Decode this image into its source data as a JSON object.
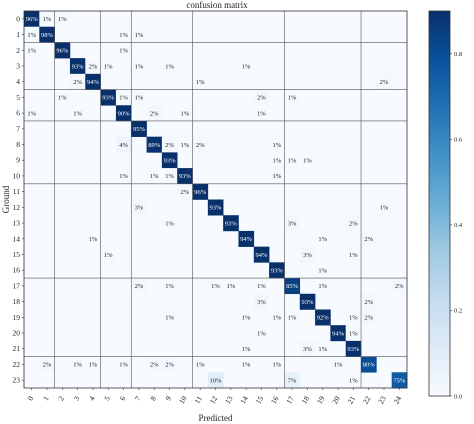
{
  "chart_data": {
    "type": "heatmap",
    "title": "confusion matrix",
    "xlabel": "Predicted",
    "ylabel": "Ground",
    "x_categories": [
      "0",
      "1",
      "2",
      "3",
      "4",
      "5",
      "6",
      "7",
      "8",
      "9",
      "10",
      "11",
      "12",
      "13",
      "14",
      "15",
      "16",
      "17",
      "18",
      "19",
      "20",
      "21",
      "22",
      "23",
      "24"
    ],
    "y_categories": [
      "0",
      "1",
      "2",
      "3",
      "4",
      "5",
      "6",
      "7",
      "8",
      "9",
      "10",
      "11",
      "12",
      "13",
      "14",
      "15",
      "16",
      "17",
      "18",
      "19",
      "20",
      "21",
      "22",
      "23"
    ],
    "colorbar": {
      "min": 0,
      "max": 0.9,
      "ticks": [
        0.0,
        0.2,
        0.4,
        0.6,
        0.8
      ],
      "tick_labels": [
        "0.0",
        "0.2",
        "0.4",
        "0.6",
        "0.8"
      ]
    },
    "colormap": "Blues",
    "group_boundaries_after_row": [
      1,
      4,
      6,
      10,
      16,
      21
    ],
    "cells": [
      {
        "row": 0,
        "col": 0,
        "value": 0.96,
        "label": "96%"
      },
      {
        "row": 0,
        "col": 1,
        "value": 0.01,
        "label": "1%"
      },
      {
        "row": 0,
        "col": 2,
        "value": 0.01,
        "label": "1%"
      },
      {
        "row": 1,
        "col": 0,
        "value": 0.01,
        "label": "1%"
      },
      {
        "row": 1,
        "col": 1,
        "value": 0.98,
        "label": "98%"
      },
      {
        "row": 1,
        "col": 6,
        "value": 0.01,
        "label": "1%"
      },
      {
        "row": 1,
        "col": 7,
        "value": 0.01,
        "label": "1%"
      },
      {
        "row": 2,
        "col": 0,
        "value": 0.01,
        "label": "1%"
      },
      {
        "row": 2,
        "col": 2,
        "value": 0.96,
        "label": "96%"
      },
      {
        "row": 2,
        "col": 6,
        "value": 0.01,
        "label": "1%"
      },
      {
        "row": 3,
        "col": 3,
        "value": 0.93,
        "label": "93%"
      },
      {
        "row": 3,
        "col": 4,
        "value": 0.02,
        "label": "2%"
      },
      {
        "row": 3,
        "col": 5,
        "value": 0.01,
        "label": "1%"
      },
      {
        "row": 3,
        "col": 7,
        "value": 0.01,
        "label": "1%"
      },
      {
        "row": 3,
        "col": 9,
        "value": 0.01,
        "label": "1%"
      },
      {
        "row": 3,
        "col": 14,
        "value": 0.01,
        "label": "1%"
      },
      {
        "row": 4,
        "col": 3,
        "value": 0.02,
        "label": "2%"
      },
      {
        "row": 4,
        "col": 4,
        "value": 0.94,
        "label": "94%"
      },
      {
        "row": 4,
        "col": 11,
        "value": 0.01,
        "label": "1%"
      },
      {
        "row": 4,
        "col": 23,
        "value": 0.02,
        "label": "2%"
      },
      {
        "row": 5,
        "col": 2,
        "value": 0.01,
        "label": "1%"
      },
      {
        "row": 5,
        "col": 5,
        "value": 0.93,
        "label": "93%"
      },
      {
        "row": 5,
        "col": 6,
        "value": 0.01,
        "label": "1%"
      },
      {
        "row": 5,
        "col": 7,
        "value": 0.01,
        "label": "1%"
      },
      {
        "row": 5,
        "col": 15,
        "value": 0.02,
        "label": "2%"
      },
      {
        "row": 5,
        "col": 17,
        "value": 0.01,
        "label": "1%"
      },
      {
        "row": 6,
        "col": 0,
        "value": 0.01,
        "label": "1%"
      },
      {
        "row": 6,
        "col": 3,
        "value": 0.01,
        "label": "1%"
      },
      {
        "row": 6,
        "col": 6,
        "value": 0.9,
        "label": "90%"
      },
      {
        "row": 6,
        "col": 8,
        "value": 0.02,
        "label": "2%"
      },
      {
        "row": 6,
        "col": 10,
        "value": 0.01,
        "label": "1%"
      },
      {
        "row": 6,
        "col": 15,
        "value": 0.01,
        "label": "1%"
      },
      {
        "row": 7,
        "col": 7,
        "value": 0.95,
        "label": "95%"
      },
      {
        "row": 8,
        "col": 6,
        "value": 0.04,
        "label": "4%"
      },
      {
        "row": 8,
        "col": 8,
        "value": 0.89,
        "label": "89%"
      },
      {
        "row": 8,
        "col": 9,
        "value": 0.02,
        "label": "2%"
      },
      {
        "row": 8,
        "col": 10,
        "value": 0.01,
        "label": "1%"
      },
      {
        "row": 8,
        "col": 11,
        "value": 0.02,
        "label": "2%"
      },
      {
        "row": 8,
        "col": 16,
        "value": 0.01,
        "label": "1%"
      },
      {
        "row": 9,
        "col": 9,
        "value": 0.93,
        "label": "93%"
      },
      {
        "row": 9,
        "col": 16,
        "value": 0.01,
        "label": "1%"
      },
      {
        "row": 9,
        "col": 17,
        "value": 0.01,
        "label": "1%"
      },
      {
        "row": 9,
        "col": 18,
        "value": 0.01,
        "label": "1%"
      },
      {
        "row": 10,
        "col": 6,
        "value": 0.01,
        "label": "1%"
      },
      {
        "row": 10,
        "col": 8,
        "value": 0.01,
        "label": "1%"
      },
      {
        "row": 10,
        "col": 9,
        "value": 0.01,
        "label": "1%"
      },
      {
        "row": 10,
        "col": 10,
        "value": 0.93,
        "label": "93%"
      },
      {
        "row": 10,
        "col": 16,
        "value": 0.01,
        "label": "1%"
      },
      {
        "row": 11,
        "col": 10,
        "value": 0.02,
        "label": "2%"
      },
      {
        "row": 11,
        "col": 11,
        "value": 0.96,
        "label": "96%"
      },
      {
        "row": 12,
        "col": 7,
        "value": 0.03,
        "label": "3%"
      },
      {
        "row": 12,
        "col": 12,
        "value": 0.93,
        "label": "93%"
      },
      {
        "row": 12,
        "col": 23,
        "value": 0.01,
        "label": "1%"
      },
      {
        "row": 13,
        "col": 9,
        "value": 0.01,
        "label": "1%"
      },
      {
        "row": 13,
        "col": 13,
        "value": 0.93,
        "label": "93%"
      },
      {
        "row": 13,
        "col": 17,
        "value": 0.03,
        "label": "3%"
      },
      {
        "row": 13,
        "col": 21,
        "value": 0.02,
        "label": "2%"
      },
      {
        "row": 14,
        "col": 4,
        "value": 0.01,
        "label": "1%"
      },
      {
        "row": 14,
        "col": 14,
        "value": 0.94,
        "label": "94%"
      },
      {
        "row": 14,
        "col": 19,
        "value": 0.01,
        "label": "1%"
      },
      {
        "row": 14,
        "col": 22,
        "value": 0.02,
        "label": "2%"
      },
      {
        "row": 15,
        "col": 5,
        "value": 0.01,
        "label": "1%"
      },
      {
        "row": 15,
        "col": 15,
        "value": 0.94,
        "label": "94%"
      },
      {
        "row": 15,
        "col": 18,
        "value": 0.03,
        "label": "3%"
      },
      {
        "row": 15,
        "col": 21,
        "value": 0.01,
        "label": "1%"
      },
      {
        "row": 16,
        "col": 16,
        "value": 0.93,
        "label": "93%"
      },
      {
        "row": 16,
        "col": 19,
        "value": 0.01,
        "label": "1%"
      },
      {
        "row": 17,
        "col": 7,
        "value": 0.02,
        "label": "2%"
      },
      {
        "row": 17,
        "col": 9,
        "value": 0.01,
        "label": "1%"
      },
      {
        "row": 17,
        "col": 12,
        "value": 0.01,
        "label": "1%"
      },
      {
        "row": 17,
        "col": 13,
        "value": 0.01,
        "label": "1%"
      },
      {
        "row": 17,
        "col": 15,
        "value": 0.01,
        "label": "1%"
      },
      {
        "row": 17,
        "col": 17,
        "value": 0.85,
        "label": "85%"
      },
      {
        "row": 17,
        "col": 19,
        "value": 0.01,
        "label": "1%"
      },
      {
        "row": 17,
        "col": 24,
        "value": 0.02,
        "label": "2%"
      },
      {
        "row": 18,
        "col": 15,
        "value": 0.03,
        "label": "3%"
      },
      {
        "row": 18,
        "col": 18,
        "value": 0.93,
        "label": "93%"
      },
      {
        "row": 18,
        "col": 22,
        "value": 0.02,
        "label": "2%"
      },
      {
        "row": 19,
        "col": 9,
        "value": 0.01,
        "label": "1%"
      },
      {
        "row": 19,
        "col": 14,
        "value": 0.01,
        "label": "1%"
      },
      {
        "row": 19,
        "col": 16,
        "value": 0.01,
        "label": "1%"
      },
      {
        "row": 19,
        "col": 17,
        "value": 0.01,
        "label": "1%"
      },
      {
        "row": 19,
        "col": 19,
        "value": 0.92,
        "label": "92%"
      },
      {
        "row": 19,
        "col": 21,
        "value": 0.01,
        "label": "1%"
      },
      {
        "row": 19,
        "col": 22,
        "value": 0.02,
        "label": "2%"
      },
      {
        "row": 20,
        "col": 15,
        "value": 0.01,
        "label": "1%"
      },
      {
        "row": 20,
        "col": 20,
        "value": 0.94,
        "label": "94%"
      },
      {
        "row": 20,
        "col": 21,
        "value": 0.01,
        "label": "1%"
      },
      {
        "row": 21,
        "col": 14,
        "value": 0.01,
        "label": "1%"
      },
      {
        "row": 21,
        "col": 18,
        "value": 0.03,
        "label": "3%"
      },
      {
        "row": 21,
        "col": 19,
        "value": 0.01,
        "label": "1%"
      },
      {
        "row": 21,
        "col": 21,
        "value": 0.93,
        "label": "93%"
      },
      {
        "row": 22,
        "col": 1,
        "value": 0.02,
        "label": "2%"
      },
      {
        "row": 22,
        "col": 3,
        "value": 0.01,
        "label": "1%"
      },
      {
        "row": 22,
        "col": 4,
        "value": 0.01,
        "label": "1%"
      },
      {
        "row": 22,
        "col": 6,
        "value": 0.01,
        "label": "1%"
      },
      {
        "row": 22,
        "col": 8,
        "value": 0.02,
        "label": "2%"
      },
      {
        "row": 22,
        "col": 9,
        "value": 0.02,
        "label": "2%"
      },
      {
        "row": 22,
        "col": 11,
        "value": 0.01,
        "label": "1%"
      },
      {
        "row": 22,
        "col": 14,
        "value": 0.01,
        "label": "1%"
      },
      {
        "row": 22,
        "col": 16,
        "value": 0.01,
        "label": "1%"
      },
      {
        "row": 22,
        "col": 20,
        "value": 0.01,
        "label": "1%"
      },
      {
        "row": 22,
        "col": 22,
        "value": 0.8,
        "label": "80%"
      },
      {
        "row": 23,
        "col": 12,
        "value": 0.1,
        "label": "10%"
      },
      {
        "row": 23,
        "col": 17,
        "value": 0.07,
        "label": "7%"
      },
      {
        "row": 23,
        "col": 21,
        "value": 0.01,
        "label": "1%"
      },
      {
        "row": 23,
        "col": 24,
        "value": 0.75,
        "label": "75%"
      }
    ]
  }
}
